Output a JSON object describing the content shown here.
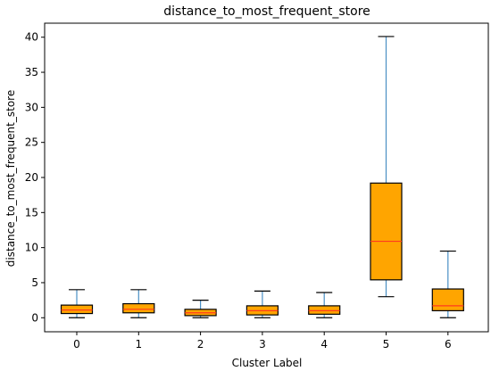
{
  "chart_data": {
    "type": "boxplot",
    "title": "distance_to_most_frequent_store",
    "xlabel": "Cluster Label",
    "ylabel": "distance_to_most_frequent_store",
    "ylim": [
      -2,
      42
    ],
    "yticks": [
      0,
      5,
      10,
      15,
      20,
      25,
      30,
      35,
      40
    ],
    "grid": false,
    "colors": {
      "box": "#ffa500",
      "median": "#ff3b1f",
      "whisker": "#4a8fc4",
      "cap": "#000000"
    },
    "categories": [
      "0",
      "1",
      "2",
      "3",
      "4",
      "5",
      "6"
    ],
    "boxes": [
      {
        "label": "0",
        "whisker_low": 0.0,
        "q1": 0.6,
        "median": 1.1,
        "q3": 1.8,
        "whisker_high": 4.0
      },
      {
        "label": "1",
        "whisker_low": 0.0,
        "q1": 0.7,
        "median": 1.2,
        "q3": 2.0,
        "whisker_high": 4.0
      },
      {
        "label": "2",
        "whisker_low": 0.0,
        "q1": 0.3,
        "median": 0.7,
        "q3": 1.2,
        "whisker_high": 2.5
      },
      {
        "label": "3",
        "whisker_low": 0.0,
        "q1": 0.4,
        "median": 1.0,
        "q3": 1.7,
        "whisker_high": 3.8
      },
      {
        "label": "4",
        "whisker_low": 0.0,
        "q1": 0.5,
        "median": 1.0,
        "q3": 1.7,
        "whisker_high": 3.6
      },
      {
        "label": "5",
        "whisker_low": 3.0,
        "q1": 5.4,
        "median": 10.9,
        "q3": 19.2,
        "whisker_high": 40.1
      },
      {
        "label": "6",
        "whisker_low": 0.0,
        "q1": 1.0,
        "median": 1.7,
        "q3": 4.1,
        "whisker_high": 9.5
      }
    ]
  }
}
